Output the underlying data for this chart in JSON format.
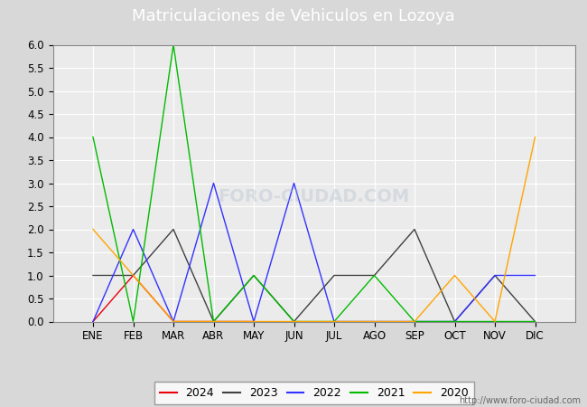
{
  "title": "Matriculaciones de Vehiculos en Lozoya",
  "months_labels": [
    "ENE",
    "FEB",
    "MAR",
    "ABR",
    "MAY",
    "JUN",
    "JUL",
    "AGO",
    "SEP",
    "OCT",
    "NOV",
    "DIC"
  ],
  "series": {
    "2024": {
      "color": "#e8000b",
      "data": [
        0,
        1,
        0,
        0,
        0,
        null,
        null,
        null,
        null,
        null,
        null,
        null
      ]
    },
    "2023": {
      "color": "#404040",
      "data": [
        1,
        1,
        2,
        0,
        1,
        0,
        1,
        1,
        2,
        0,
        1,
        0
      ]
    },
    "2022": {
      "color": "#3333ff",
      "data": [
        0,
        2,
        0,
        3,
        0,
        3,
        0,
        0,
        0,
        0,
        1,
        1
      ]
    },
    "2021": {
      "color": "#00bb00",
      "data": [
        4,
        0,
        6,
        0,
        1,
        0,
        0,
        1,
        0,
        0,
        0,
        0
      ]
    },
    "2020": {
      "color": "#ffa500",
      "data": [
        2,
        1,
        0,
        0,
        0,
        0,
        0,
        0,
        0,
        1,
        0,
        4
      ]
    }
  },
  "ylim": [
    0,
    6.0
  ],
  "yticks": [
    0.0,
    0.5,
    1.0,
    1.5,
    2.0,
    2.5,
    3.0,
    3.5,
    4.0,
    4.5,
    5.0,
    5.5,
    6.0
  ],
  "outer_bg_color": "#d8d8d8",
  "plot_bg_color": "#ebebeb",
  "title_bg_color": "#4f86c0",
  "title_color": "#ffffff",
  "grid_color": "#ffffff",
  "watermark": "http://www.foro-ciudad.com",
  "legend_years": [
    "2024",
    "2023",
    "2022",
    "2021",
    "2020"
  ],
  "title_fontsize": 13,
  "tick_fontsize": 8.5
}
